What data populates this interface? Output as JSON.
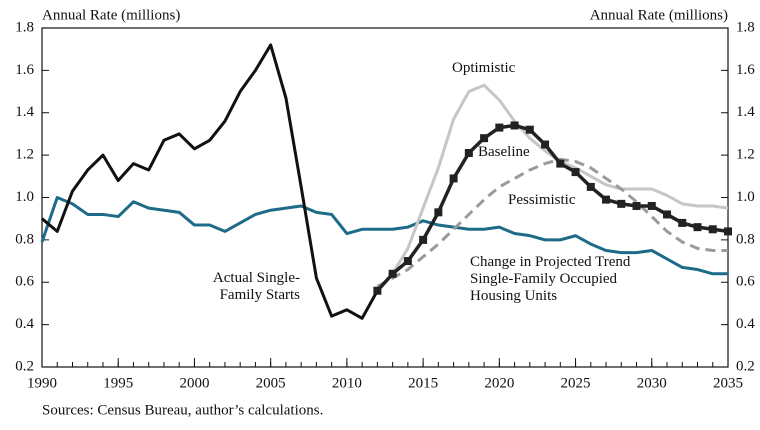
{
  "chart_data": {
    "type": "line",
    "ylabel": "Annual Rate (millions)",
    "y2label": "Annual Rate (millions)",
    "source": "Sources: Census Bureau, author’s calculations.",
    "x": [
      1990,
      1991,
      1992,
      1993,
      1994,
      1995,
      1996,
      1997,
      1998,
      1999,
      2000,
      2001,
      2002,
      2003,
      2004,
      2005,
      2006,
      2007,
      2008,
      2009,
      2010,
      2011,
      2012,
      2013,
      2014,
      2015,
      2016,
      2017,
      2018,
      2019,
      2020,
      2021,
      2022,
      2023,
      2024,
      2025,
      2026,
      2027,
      2028,
      2029,
      2030,
      2031,
      2032,
      2033,
      2034,
      2035
    ],
    "xlim": [
      1990,
      2035
    ],
    "xticks": [
      1990,
      1995,
      2000,
      2005,
      2010,
      2015,
      2020,
      2025,
      2030,
      2035
    ],
    "ylim": [
      0.2,
      1.8
    ],
    "yticks": [
      0.2,
      0.4,
      0.6,
      0.8,
      {
        "value": 1,
        "label": "1.0"
      },
      1.2,
      1.4,
      1.6,
      1.8
    ],
    "y2lim": [
      0.2,
      1.8
    ],
    "y2ticks": [
      0.2,
      0.4,
      0.6,
      0.8,
      {
        "value": 1,
        "label": "1.0"
      },
      1.2,
      1.4,
      1.6,
      1.8
    ],
    "series": [
      {
        "name": "Change in Projected Trend Single-Family Occupied Housing Units",
        "color": "#1d6b88",
        "style": "solid",
        "width": 3,
        "values": [
          0.79,
          1.0,
          0.97,
          0.92,
          0.92,
          0.91,
          0.98,
          0.95,
          0.94,
          0.93,
          0.87,
          0.87,
          0.84,
          0.88,
          0.92,
          0.94,
          0.95,
          0.96,
          0.93,
          0.92,
          0.83,
          0.85,
          0.85,
          0.85,
          0.86,
          0.89,
          0.87,
          0.86,
          0.85,
          0.85,
          0.86,
          0.83,
          0.82,
          0.8,
          0.8,
          0.82,
          0.78,
          0.75,
          0.74,
          0.74,
          0.75,
          0.71,
          0.67,
          0.66,
          0.64,
          0.64
        ]
      },
      {
        "name": "Optimistic",
        "color": "#c6c6c6",
        "style": "solid",
        "width": 3,
        "values": [
          null,
          null,
          null,
          null,
          null,
          null,
          null,
          null,
          null,
          null,
          null,
          null,
          null,
          null,
          null,
          null,
          null,
          null,
          null,
          null,
          null,
          null,
          null,
          0.64,
          0.76,
          0.95,
          1.14,
          1.37,
          1.5,
          1.53,
          1.46,
          1.36,
          1.28,
          1.22,
          1.17,
          1.14,
          1.1,
          1.06,
          1.04,
          1.04,
          1.04,
          1.01,
          0.97,
          0.96,
          0.96,
          0.95
        ]
      },
      {
        "name": "Pessimistic",
        "color": "#9a9a9a",
        "style": "dashed",
        "width": 3,
        "values": [
          null,
          null,
          null,
          null,
          null,
          null,
          null,
          null,
          null,
          null,
          null,
          null,
          null,
          null,
          null,
          null,
          null,
          null,
          null,
          null,
          null,
          null,
          0.58,
          0.62,
          0.66,
          0.72,
          0.78,
          0.85,
          0.92,
          0.99,
          1.05,
          1.09,
          1.13,
          1.16,
          1.18,
          1.17,
          1.14,
          1.09,
          1.04,
          0.98,
          0.91,
          0.84,
          0.79,
          0.76,
          0.75,
          0.75
        ]
      },
      {
        "name": "Actual Single-Family Starts",
        "color": "#111111",
        "style": "solid",
        "width": 3,
        "values": [
          0.9,
          0.84,
          1.03,
          1.13,
          1.2,
          1.08,
          1.16,
          1.13,
          1.27,
          1.3,
          1.23,
          1.27,
          1.36,
          1.5,
          1.6,
          1.72,
          1.47,
          1.05,
          0.62,
          0.44,
          0.47,
          0.43,
          0.56,
          null,
          null,
          null,
          null,
          null,
          null,
          null,
          null,
          null,
          null,
          null,
          null,
          null,
          null,
          null,
          null,
          null,
          null,
          null,
          null,
          null,
          null,
          null
        ]
      },
      {
        "name": "Baseline",
        "color": "#222222",
        "style": "solid",
        "width": 3.5,
        "marker": "square",
        "values": [
          null,
          null,
          null,
          null,
          null,
          null,
          null,
          null,
          null,
          null,
          null,
          null,
          null,
          null,
          null,
          null,
          null,
          null,
          null,
          null,
          null,
          null,
          0.56,
          0.64,
          0.7,
          0.8,
          0.93,
          1.09,
          1.21,
          1.28,
          1.33,
          1.34,
          1.32,
          1.25,
          1.16,
          1.12,
          1.05,
          0.99,
          0.97,
          0.96,
          0.96,
          0.92,
          0.88,
          0.86,
          0.85,
          0.84
        ]
      }
    ]
  }
}
